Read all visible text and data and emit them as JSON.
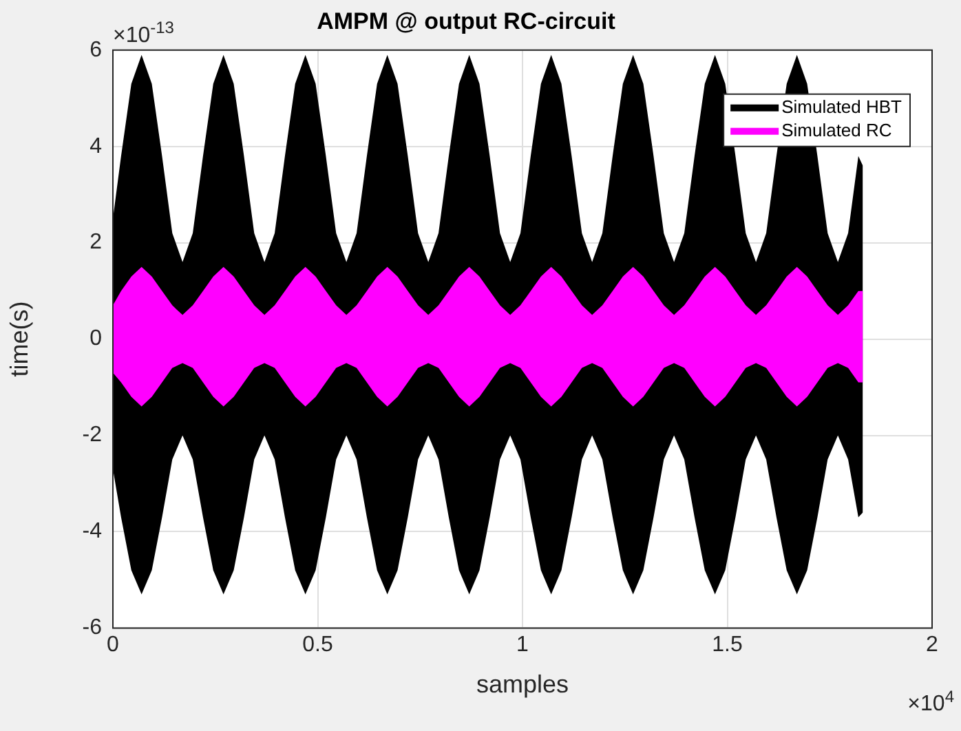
{
  "chart_data": {
    "type": "line",
    "title": "AMPM @ output RC-circuit",
    "xlabel": "samples",
    "ylabel": "time(s)",
    "annotations": [
      "×10$^{-13}$",
      "×10$^{4}$"
    ],
    "x": [
      0,
      0.02,
      0.045,
      0.07,
      0.095,
      0.12,
      0.145,
      0.17,
      0.195,
      0.22,
      0.245,
      0.27,
      0.295,
      0.32,
      0.345,
      0.37,
      0.395,
      0.42,
      0.445,
      0.47,
      0.495,
      0.52,
      0.545,
      0.57,
      0.595,
      0.62,
      0.645,
      0.67,
      0.695,
      0.72,
      0.745,
      0.77,
      0.795,
      0.82,
      0.845,
      0.87,
      0.895,
      0.92,
      0.945,
      0.97,
      0.995,
      1.02,
      1.045,
      1.07,
      1.095,
      1.12,
      1.145,
      1.17,
      1.195,
      1.22,
      1.245,
      1.27,
      1.295,
      1.32,
      1.345,
      1.37,
      1.395,
      1.42,
      1.445,
      1.47,
      1.495,
      1.52,
      1.545,
      1.57,
      1.595,
      1.62,
      1.645,
      1.67,
      1.695,
      1.72,
      1.745,
      1.77,
      1.795,
      1.82,
      1.831
    ],
    "series": [
      {
        "name": "Simulated HBT",
        "color": "#000000",
        "values": [
          null,
          null,
          null,
          null,
          null,
          null,
          null,
          null,
          null,
          null,
          null,
          null,
          null,
          null,
          null,
          null,
          null,
          null,
          null,
          null,
          null,
          null,
          null,
          null,
          null,
          null,
          null,
          null,
          null,
          null,
          null,
          null,
          null,
          null,
          null,
          null,
          null,
          null,
          null,
          null,
          null,
          null,
          null,
          null,
          null,
          null,
          null,
          null,
          null,
          null,
          null,
          null,
          null,
          null,
          null,
          null,
          null,
          null,
          null,
          null,
          null,
          null,
          null,
          null,
          null,
          null,
          null,
          null,
          null,
          null,
          null,
          null,
          null,
          null,
          null
        ],
        "upper": [
          2.5,
          3.8,
          5.3,
          5.9,
          5.3,
          3.8,
          2.2,
          1.6,
          2.2,
          3.8,
          5.3,
          5.9,
          5.3,
          3.8,
          2.2,
          1.6,
          2.2,
          3.8,
          5.3,
          5.9,
          5.3,
          3.8,
          2.2,
          1.6,
          2.2,
          3.8,
          5.3,
          5.9,
          5.3,
          3.8,
          2.2,
          1.6,
          2.2,
          3.8,
          5.3,
          5.9,
          5.3,
          3.8,
          2.2,
          1.6,
          2.2,
          3.8,
          5.3,
          5.9,
          5.3,
          3.8,
          2.2,
          1.6,
          2.2,
          3.8,
          5.3,
          5.9,
          5.3,
          3.8,
          2.2,
          1.6,
          2.2,
          3.8,
          5.3,
          5.9,
          5.3,
          3.8,
          2.2,
          1.6,
          2.2,
          3.8,
          5.3,
          5.9,
          5.3,
          3.8,
          2.2,
          1.6,
          2.2,
          3.8,
          3.6
        ],
        "lower": [
          -2.7,
          -3.7,
          -4.8,
          -5.3,
          -4.8,
          -3.7,
          -2.5,
          -2,
          -2.5,
          -3.7,
          -4.8,
          -5.3,
          -4.8,
          -3.7,
          -2.5,
          -2,
          -2.5,
          -3.7,
          -4.8,
          -5.3,
          -4.8,
          -3.7,
          -2.5,
          -2,
          -2.5,
          -3.7,
          -4.8,
          -5.3,
          -4.8,
          -3.7,
          -2.5,
          -2,
          -2.5,
          -3.7,
          -4.8,
          -5.3,
          -4.8,
          -3.7,
          -2.5,
          -2,
          -2.5,
          -3.7,
          -4.8,
          -5.3,
          -4.8,
          -3.7,
          -2.5,
          -2,
          -2.5,
          -3.7,
          -4.8,
          -5.3,
          -4.8,
          -3.7,
          -2.5,
          -2,
          -2.5,
          -3.7,
          -4.8,
          -5.3,
          -4.8,
          -3.7,
          -2.5,
          -2,
          -2.5,
          -3.7,
          -4.8,
          -5.3,
          -4.8,
          -3.7,
          -2.5,
          -2,
          -2.5,
          -3.7,
          -3.6
        ]
      },
      {
        "name": "Simulated RC",
        "color": "#ff00ff",
        "values": [
          null,
          null,
          null,
          null,
          null,
          null,
          null,
          null,
          null,
          null,
          null,
          null,
          null,
          null,
          null,
          null,
          null,
          null,
          null,
          null,
          null,
          null,
          null,
          null,
          null,
          null,
          null,
          null,
          null,
          null,
          null,
          null,
          null,
          null,
          null,
          null,
          null,
          null,
          null,
          null,
          null,
          null,
          null,
          null,
          null,
          null,
          null,
          null,
          null,
          null,
          null,
          null,
          null,
          null,
          null,
          null,
          null,
          null,
          null,
          null,
          null,
          null,
          null,
          null,
          null,
          null,
          null,
          null,
          null,
          null,
          null,
          null,
          null,
          null,
          null
        ],
        "upper": [
          0.7,
          1,
          1.3,
          1.5,
          1.3,
          1,
          0.7,
          0.5,
          0.7,
          1,
          1.3,
          1.5,
          1.3,
          1,
          0.7,
          0.5,
          0.7,
          1,
          1.3,
          1.5,
          1.3,
          1,
          0.7,
          0.5,
          0.7,
          1,
          1.3,
          1.5,
          1.3,
          1,
          0.7,
          0.5,
          0.7,
          1,
          1.3,
          1.5,
          1.3,
          1,
          0.7,
          0.5,
          0.7,
          1,
          1.3,
          1.5,
          1.3,
          1,
          0.7,
          0.5,
          0.7,
          1,
          1.3,
          1.5,
          1.3,
          1,
          0.7,
          0.5,
          0.7,
          1,
          1.3,
          1.5,
          1.3,
          1,
          0.7,
          0.5,
          0.7,
          1,
          1.3,
          1.5,
          1.3,
          1,
          0.7,
          0.5,
          0.7,
          1,
          1
        ],
        "lower": [
          -0.7,
          -0.9,
          -1.2,
          -1.4,
          -1.2,
          -0.9,
          -0.6,
          -0.5,
          -0.6,
          -0.9,
          -1.2,
          -1.4,
          -1.2,
          -0.9,
          -0.6,
          -0.5,
          -0.6,
          -0.9,
          -1.2,
          -1.4,
          -1.2,
          -0.9,
          -0.6,
          -0.5,
          -0.6,
          -0.9,
          -1.2,
          -1.4,
          -1.2,
          -0.9,
          -0.6,
          -0.5,
          -0.6,
          -0.9,
          -1.2,
          -1.4,
          -1.2,
          -0.9,
          -0.6,
          -0.5,
          -0.6,
          -0.9,
          -1.2,
          -1.4,
          -1.2,
          -0.9,
          -0.6,
          -0.5,
          -0.6,
          -0.9,
          -1.2,
          -1.4,
          -1.2,
          -0.9,
          -0.6,
          -0.5,
          -0.6,
          -0.9,
          -1.2,
          -1.4,
          -1.2,
          -0.9,
          -0.6,
          -0.5,
          -0.6,
          -0.9,
          -1.2,
          -1.4,
          -1.2,
          -0.9,
          -0.6,
          -0.5,
          -0.6,
          -0.9,
          -0.9
        ]
      }
    ],
    "xlim": [
      0,
      2
    ],
    "xticks": [
      0,
      0.5,
      1,
      1.5,
      2
    ],
    "ylim": [
      -6,
      6
    ],
    "yticks": [
      -6,
      -4,
      -2,
      0,
      2,
      4,
      6
    ],
    "grid": true,
    "legend": "top right"
  }
}
